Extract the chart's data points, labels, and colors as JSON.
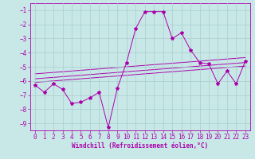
{
  "xlabel": "Windchill (Refroidissement éolien,°C)",
  "background_color": "#c8e8e8",
  "line_color": "#aa00aa",
  "x": [
    0,
    1,
    2,
    3,
    4,
    5,
    6,
    7,
    8,
    9,
    10,
    11,
    12,
    13,
    14,
    15,
    16,
    17,
    18,
    19,
    20,
    21,
    22,
    23
  ],
  "y_main": [
    -6.3,
    -6.8,
    -6.2,
    -6.6,
    -7.6,
    -7.5,
    -7.2,
    -6.8,
    -9.3,
    -6.5,
    -4.7,
    -2.3,
    -1.1,
    -1.1,
    -1.1,
    -3.0,
    -2.6,
    -3.8,
    -4.7,
    -4.8,
    -6.2,
    -5.3,
    -6.2,
    -4.6
  ],
  "y_upper": [
    -5.5,
    -5.45,
    -5.4,
    -5.35,
    -5.3,
    -5.25,
    -5.2,
    -5.15,
    -5.1,
    -5.05,
    -5.0,
    -4.95,
    -4.9,
    -4.85,
    -4.8,
    -4.75,
    -4.7,
    -4.65,
    -4.6,
    -4.55,
    -4.5,
    -4.45,
    -4.4,
    -4.35
  ],
  "y_mid": [
    -5.85,
    -5.8,
    -5.75,
    -5.7,
    -5.65,
    -5.6,
    -5.55,
    -5.5,
    -5.45,
    -5.4,
    -5.35,
    -5.3,
    -5.25,
    -5.2,
    -5.15,
    -5.1,
    -5.05,
    -5.0,
    -4.95,
    -4.9,
    -4.85,
    -4.8,
    -4.75,
    -4.7
  ],
  "y_lower": [
    -6.1,
    -6.05,
    -6.0,
    -5.95,
    -5.9,
    -5.85,
    -5.8,
    -5.75,
    -5.7,
    -5.65,
    -5.6,
    -5.55,
    -5.5,
    -5.45,
    -5.4,
    -5.35,
    -5.3,
    -5.25,
    -5.2,
    -5.15,
    -5.1,
    -5.05,
    -5.0,
    -4.95
  ],
  "ylim": [
    -9.5,
    -0.5
  ],
  "xlim_min": -0.5,
  "xlim_max": 23.5,
  "yticks": [
    -1,
    -2,
    -3,
    -4,
    -5,
    -6,
    -7,
    -8,
    -9
  ],
  "xticks": [
    0,
    1,
    2,
    3,
    4,
    5,
    6,
    7,
    8,
    9,
    10,
    11,
    12,
    13,
    14,
    15,
    16,
    17,
    18,
    19,
    20,
    21,
    22,
    23
  ],
  "grid_color": "#aacccc",
  "label_fontsize": 5.5,
  "tick_fontsize": 5.5
}
